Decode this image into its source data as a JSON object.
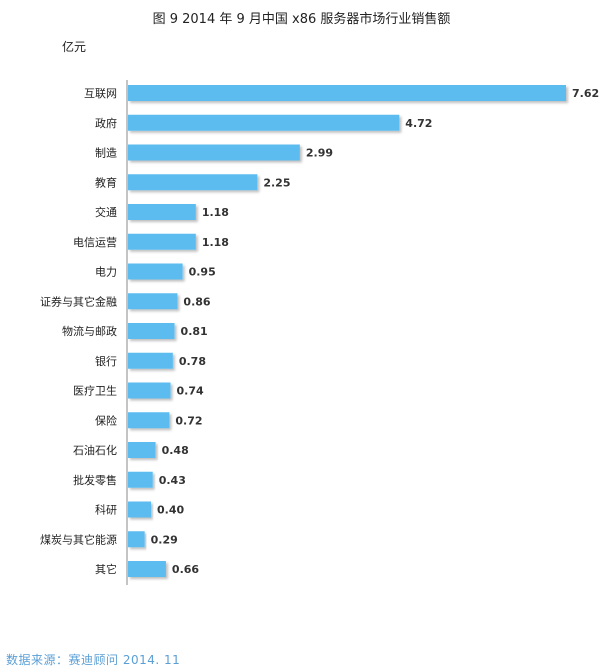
{
  "chart_data": {
    "type": "bar",
    "orientation": "horizontal",
    "title": "图 9    2014 年 9 月中国 x86 服务器市场行业销售额",
    "unit": "亿元",
    "categories": [
      "互联网",
      "政府",
      "制造",
      "教育",
      "交通",
      "电信运营",
      "电力",
      "证券与其它金融",
      "物流与邮政",
      "银行",
      "医疗卫生",
      "保险",
      "石油石化",
      "批发零售",
      "科研",
      "煤炭与其它能源",
      "其它"
    ],
    "values": [
      7.62,
      4.72,
      2.99,
      2.25,
      1.18,
      1.18,
      0.95,
      0.86,
      0.81,
      0.78,
      0.74,
      0.72,
      0.48,
      0.43,
      0.4,
      0.29,
      0.66
    ],
    "value_labels": [
      "7.62",
      "4.72",
      "2.99",
      "2.25",
      "1.18",
      "1.18",
      "0.95",
      "0.86",
      "0.81",
      "0.78",
      "0.74",
      "0.72",
      "0.48",
      "0.43",
      "0.40",
      "0.29",
      "0.66"
    ],
    "xlim": [
      0,
      7.62
    ],
    "grid": false,
    "legend": "none",
    "bar_color": "#5bbcf0"
  },
  "source_note": "数据来源：赛迪顾问 2014. 11"
}
